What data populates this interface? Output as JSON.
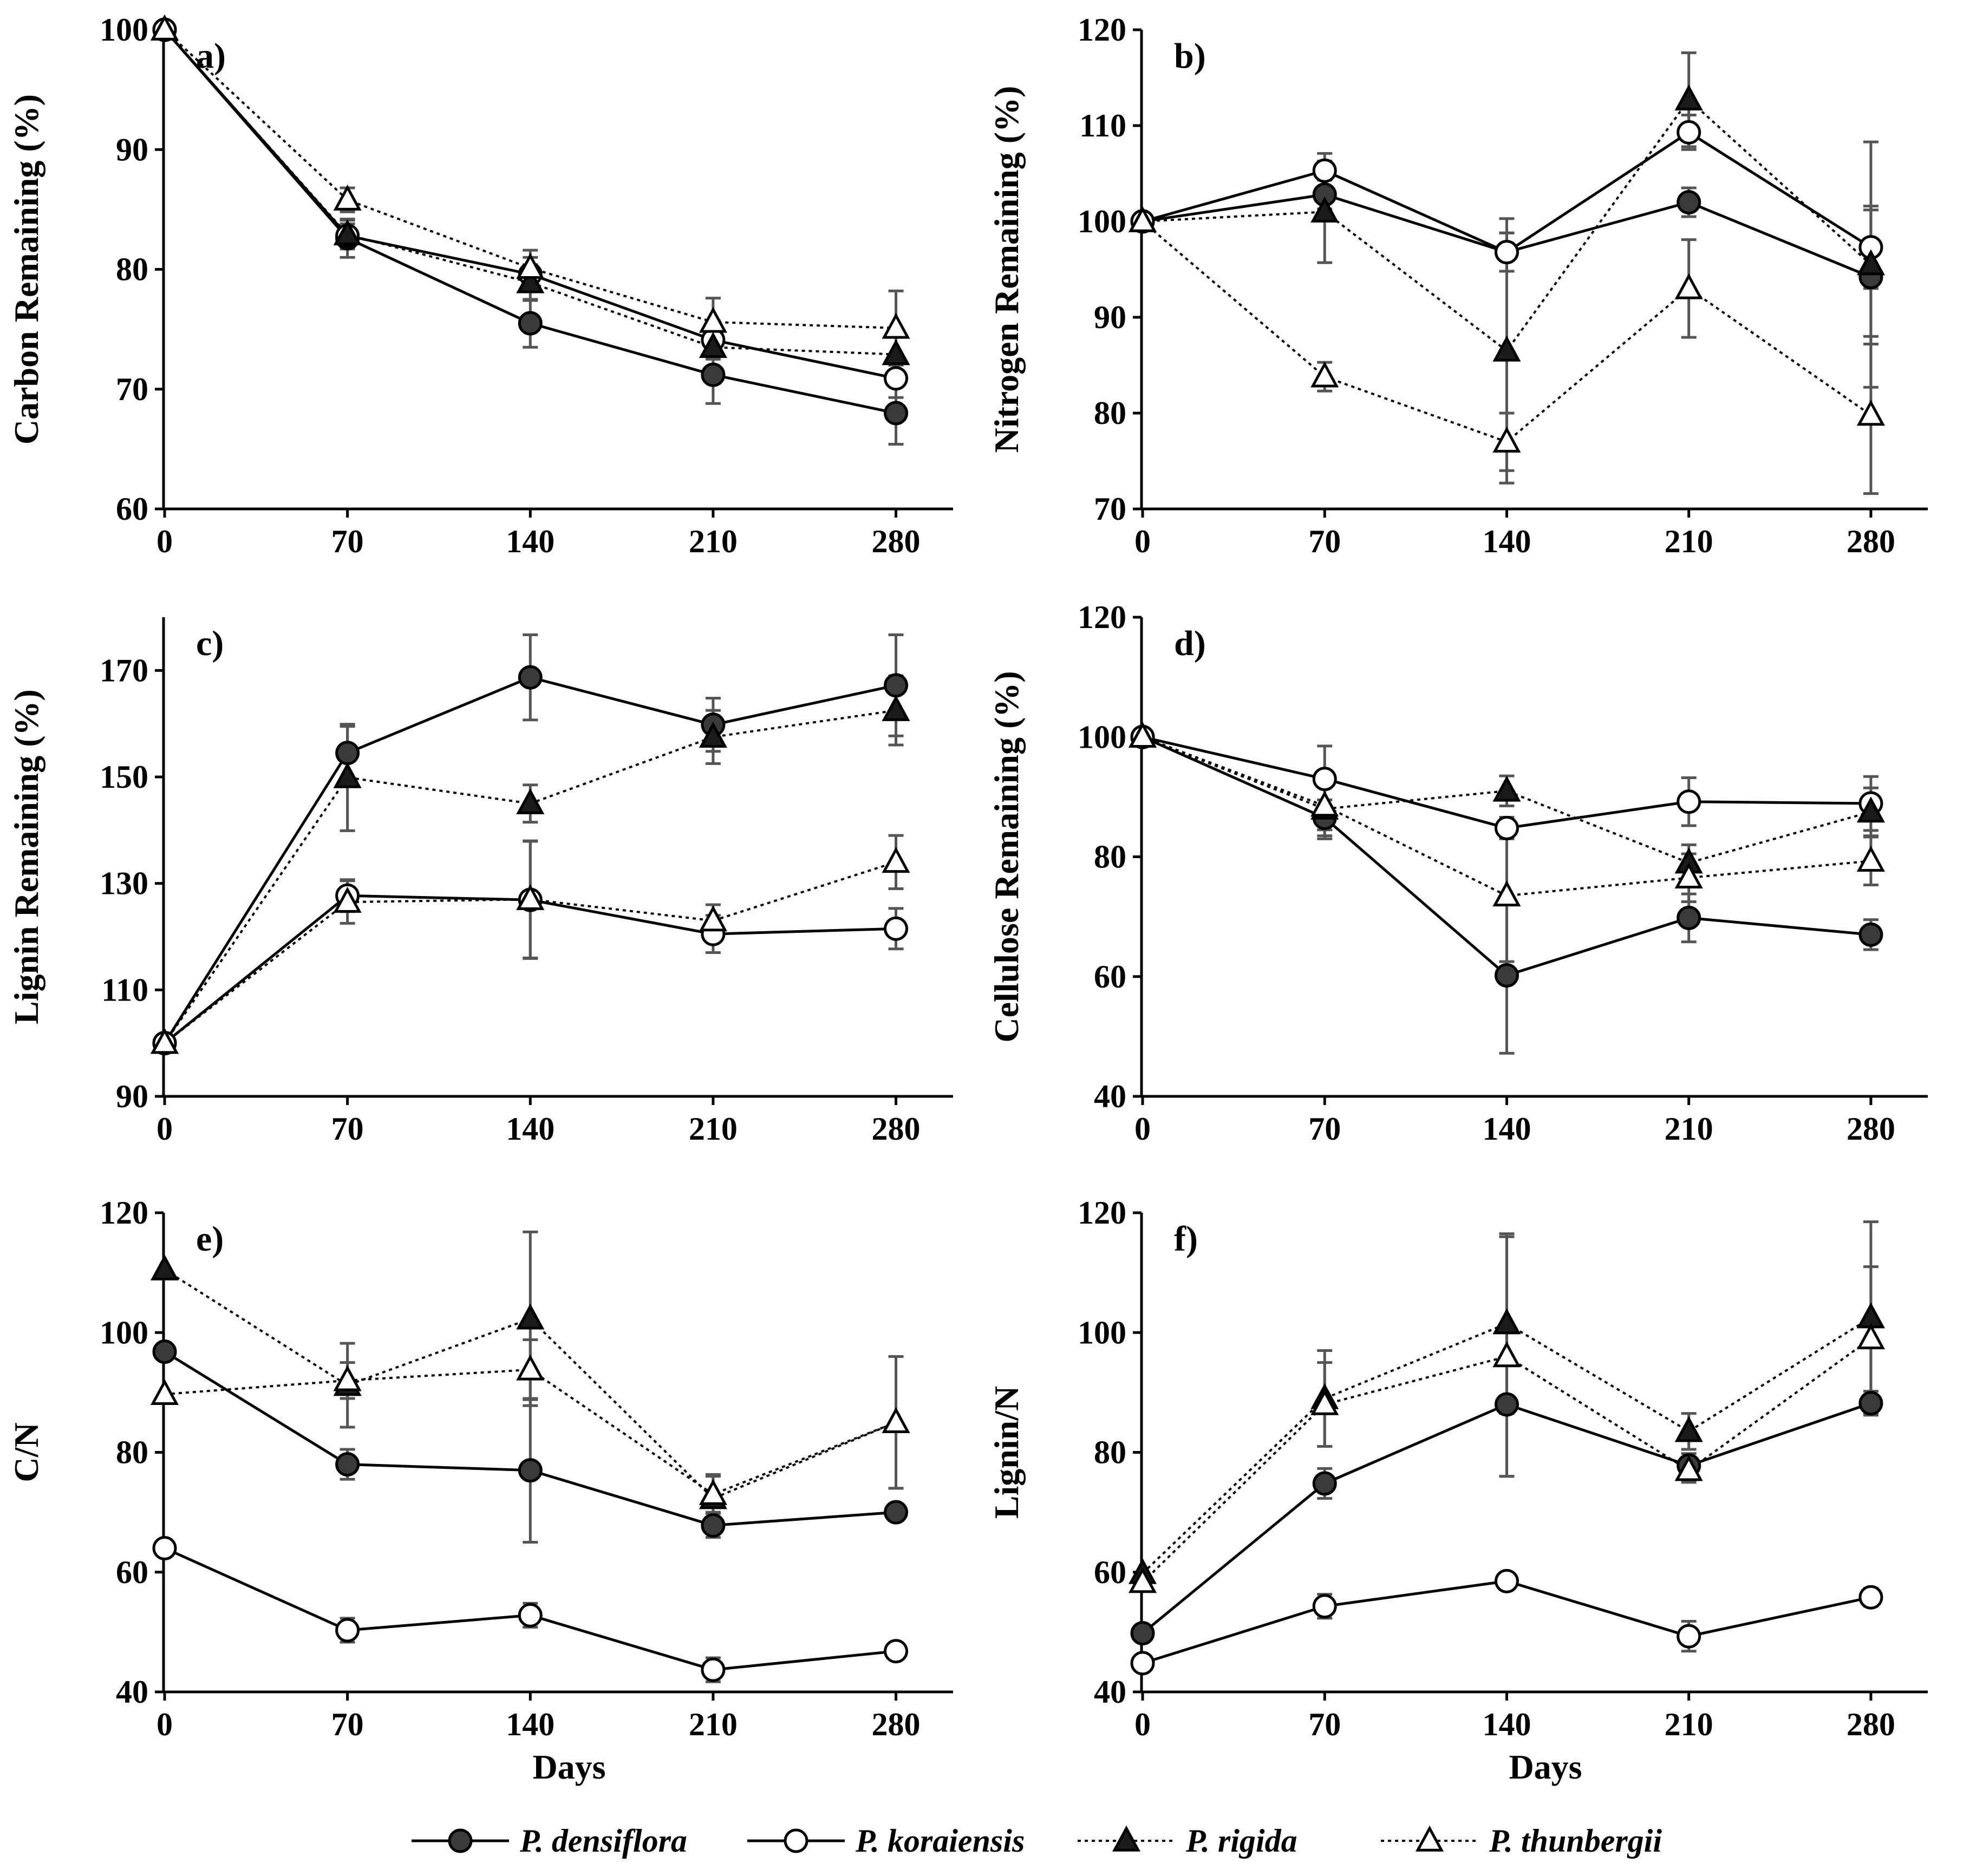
{
  "colors": {
    "filled_marker": "#1a1a1a",
    "densiflora_marker": "#3a3a3a",
    "line": "#000000",
    "error_bar": "#555555",
    "background": "#ffffff"
  },
  "legend": [
    {
      "name": "P. densiflora",
      "marker": "circle-filled",
      "line": "solid"
    },
    {
      "name": "P. koraiensis",
      "marker": "circle-open",
      "line": "solid"
    },
    {
      "name": "P. rigida",
      "marker": "triangle-filled",
      "line": "dotted"
    },
    {
      "name": "P. thunbergii",
      "marker": "triangle-open",
      "line": "dotted"
    }
  ],
  "chart_data": [
    {
      "type": "line",
      "panel": "a)",
      "ylabel": "Carbon Remaining (%)",
      "xlabel": "",
      "x": [
        0,
        70,
        140,
        210,
        280
      ],
      "xticks": [
        "0",
        "70",
        "140",
        "210",
        "280"
      ],
      "ylim": [
        60,
        100
      ],
      "yticks": [
        "60",
        "70",
        "80",
        "90",
        "100"
      ],
      "series": [
        {
          "name": "P. densiflora",
          "values": [
            100,
            82.6,
            75.5,
            71.2,
            68.0
          ],
          "err": [
            0,
            1.6,
            2.0,
            2.4,
            2.6
          ]
        },
        {
          "name": "P. koraiensis",
          "values": [
            100,
            82.8,
            79.6,
            74.1,
            70.9
          ],
          "err": [
            0,
            1.0,
            1.4,
            1.6,
            1.6
          ]
        },
        {
          "name": "P. rigida",
          "values": [
            100,
            82.9,
            78.9,
            73.5,
            72.9
          ],
          "err": [
            0,
            1.2,
            1.5,
            1.8,
            1.5
          ]
        },
        {
          "name": "P. thunbergii",
          "values": [
            100,
            85.8,
            80.1,
            75.6,
            75.1
          ],
          "err": [
            0,
            1.0,
            1.5,
            2.0,
            3.1
          ]
        }
      ]
    },
    {
      "type": "line",
      "panel": "b)",
      "ylabel": "Nitrogen Remaining (%)",
      "xlabel": "",
      "x": [
        0,
        70,
        140,
        210,
        280
      ],
      "xticks": [
        "0",
        "70",
        "140",
        "210",
        "280"
      ],
      "ylim": [
        70,
        120
      ],
      "yticks": [
        "70",
        "80",
        "90",
        "100",
        "110",
        "120"
      ],
      "series": [
        {
          "name": "P. densiflora",
          "values": [
            100,
            102.8,
            96.8,
            102.0,
            94.2
          ],
          "err": [
            0,
            1.5,
            2.0,
            1.5,
            7.0
          ]
        },
        {
          "name": "P. koraiensis",
          "values": [
            100,
            105.3,
            96.8,
            109.3,
            97.3
          ],
          "err": [
            0,
            1.8,
            2.0,
            1.8,
            4.3
          ]
        },
        {
          "name": "P. rigida",
          "values": [
            100,
            101.0,
            86.5,
            112.7,
            95.5
          ],
          "err": [
            0,
            5.3,
            13.8,
            4.9,
            12.8
          ]
        },
        {
          "name": "P. thunbergii",
          "values": [
            100,
            83.8,
            77.0,
            93.0,
            79.8
          ],
          "err": [
            0,
            1.5,
            3.0,
            5.1,
            8.2
          ]
        }
      ]
    },
    {
      "type": "line",
      "panel": "c)",
      "ylabel": "Lignin Remaining (%)",
      "xlabel": "",
      "x": [
        0,
        70,
        140,
        210,
        280
      ],
      "xticks": [
        "0",
        "70",
        "140",
        "210",
        "280"
      ],
      "ylim": [
        90,
        180
      ],
      "yticks": [
        "90",
        "110",
        "130",
        "150",
        "170"
      ],
      "series": [
        {
          "name": "P. densiflora",
          "values": [
            100,
            154.5,
            168.7,
            159.8,
            167.2
          ],
          "err": [
            0,
            5.0,
            8.0,
            5.0,
            9.5
          ]
        },
        {
          "name": "P. koraiensis",
          "values": [
            100,
            127.7,
            126.9,
            120.5,
            121.5
          ],
          "err": [
            0,
            3.0,
            11.0,
            3.5,
            3.8
          ]
        },
        {
          "name": "P. rigida",
          "values": [
            100,
            149.9,
            145.0,
            157.5,
            162.5
          ],
          "err": [
            0,
            10.0,
            3.5,
            5.0,
            6.5
          ]
        },
        {
          "name": "P. thunbergii",
          "values": [
            100,
            126.5,
            127.0,
            123.0,
            134.0
          ],
          "err": [
            0,
            4.0,
            11.0,
            3.0,
            5.0
          ]
        }
      ]
    },
    {
      "type": "line",
      "panel": "d)",
      "ylabel": "Cellulose Remaining (%)",
      "xlabel": "",
      "x": [
        0,
        70,
        140,
        210,
        280
      ],
      "xticks": [
        "0",
        "70",
        "140",
        "210",
        "280"
      ],
      "ylim": [
        40,
        120
      ],
      "yticks": [
        "40",
        "60",
        "80",
        "100",
        "120"
      ],
      "series": [
        {
          "name": "P. densiflora",
          "values": [
            100,
            86.5,
            60.2,
            69.8,
            67.0
          ],
          "err": [
            0,
            3.0,
            13.0,
            4.0,
            2.5
          ]
        },
        {
          "name": "P. koraiensis",
          "values": [
            100,
            93.0,
            84.8,
            89.2,
            88.9
          ],
          "err": [
            0,
            5.5,
            1.8,
            4.0,
            4.5
          ]
        },
        {
          "name": "P. rigida",
          "values": [
            100,
            88.0,
            91.0,
            79.0,
            87.5
          ],
          "err": [
            0,
            5.0,
            2.5,
            3.0,
            4.0
          ]
        },
        {
          "name": "P. thunbergii",
          "values": [
            100,
            88.5,
            73.5,
            76.5,
            79.3
          ],
          "err": [
            0,
            4.0,
            11.0,
            4.0,
            4.0
          ]
        }
      ]
    },
    {
      "type": "line",
      "panel": "e)",
      "ylabel": "C/N",
      "xlabel": "Days",
      "x": [
        0,
        70,
        140,
        210,
        280
      ],
      "xticks": [
        "0",
        "70",
        "140",
        "210",
        "280"
      ],
      "ylim": [
        40,
        120
      ],
      "yticks": [
        "40",
        "60",
        "80",
        "100",
        "120"
      ],
      "series": [
        {
          "name": "P. densiflora",
          "values": [
            96.8,
            78.0,
            77.0,
            67.8,
            70.0
          ],
          "err": [
            0,
            2.5,
            12.0,
            2.0,
            1.0
          ]
        },
        {
          "name": "P. koraiensis",
          "values": [
            64.0,
            50.3,
            52.8,
            43.7,
            46.8
          ],
          "err": [
            0,
            2.0,
            2.0,
            2.0,
            1.0
          ]
        },
        {
          "name": "P. rigida",
          "values": [
            110.5,
            91.2,
            102.3,
            72.3,
            85.0
          ],
          "err": [
            0,
            7.0,
            14.5,
            4.0,
            11.0
          ]
        },
        {
          "name": "P. thunbergii",
          "values": [
            89.7,
            92.0,
            93.8,
            73.0,
            85.0
          ],
          "err": [
            0,
            3.0,
            5.0,
            3.0,
            11.0
          ]
        }
      ]
    },
    {
      "type": "line",
      "panel": "f)",
      "ylabel": "Lignin/N",
      "xlabel": "Days",
      "x": [
        0,
        70,
        140,
        210,
        280
      ],
      "xticks": [
        "0",
        "70",
        "140",
        "210",
        "280"
      ],
      "ylim": [
        40,
        120
      ],
      "yticks": [
        "40",
        "60",
        "80",
        "100",
        "120"
      ],
      "series": [
        {
          "name": "P. densiflora",
          "values": [
            49.8,
            74.8,
            88.0,
            77.8,
            88.2
          ],
          "err": [
            0,
            2.5,
            12.0,
            2.0,
            2.0
          ]
        },
        {
          "name": "P. koraiensis",
          "values": [
            44.8,
            54.3,
            58.5,
            49.3,
            55.8
          ],
          "err": [
            0,
            2.0,
            1.0,
            2.5,
            1.5
          ]
        },
        {
          "name": "P. rigida",
          "values": [
            59.8,
            89.0,
            101.5,
            83.5,
            102.5
          ],
          "err": [
            0,
            8.0,
            15.0,
            3.0,
            16.0
          ]
        },
        {
          "name": "P. thunbergii",
          "values": [
            58.3,
            88.0,
            96.0,
            77.0,
            99.0
          ],
          "err": [
            0,
            7.0,
            20.0,
            2.0,
            12.0
          ]
        }
      ]
    }
  ]
}
